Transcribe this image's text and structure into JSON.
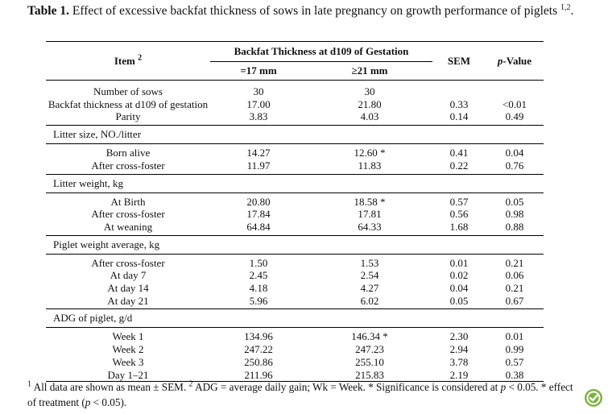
{
  "caption": {
    "label": "Table 1.",
    "text": "Effect of excessive backfat thickness of sows in late pregnancy on growth performance of piglets",
    "sup": "1,2",
    "end": "."
  },
  "header": {
    "item": "Item",
    "item_sup": "2",
    "group": "Backfat Thickness at d109 of Gestation",
    "col1": "=17 mm",
    "col2": "≥21 mm",
    "sem": "SEM",
    "pvalue_italic": "p",
    "pvalue_rest": "-Value"
  },
  "sections": [
    {
      "title": "",
      "rows": [
        {
          "item": "Number of sows",
          "a": "30",
          "b": "30",
          "sem": "",
          "p": ""
        },
        {
          "item": "Backfat thickness at d109 of gestation",
          "a": "17.00",
          "b": "21.80",
          "sem": "0.33",
          "p": "<0.01"
        },
        {
          "item": "Parity",
          "a": "3.83",
          "b": "4.03",
          "sem": "0.14",
          "p": "0.49"
        }
      ]
    },
    {
      "title": "Litter size, NO./litter",
      "rows": [
        {
          "item": "Born alive",
          "a": "14.27",
          "b": "12.60 *",
          "sem": "0.41",
          "p": "0.04"
        },
        {
          "item": "After cross-foster",
          "a": "11.97",
          "b": "11.83",
          "sem": "0.22",
          "p": "0.76"
        }
      ]
    },
    {
      "title": "Litter weight, kg",
      "rows": [
        {
          "item": "At Birth",
          "a": "20.80",
          "b": "18.58 *",
          "sem": "0.57",
          "p": "0.05"
        },
        {
          "item": "After cross-foster",
          "a": "17.84",
          "b": "17.81",
          "sem": "0.56",
          "p": "0.98"
        },
        {
          "item": "At weaning",
          "a": "64.84",
          "b": "64.33",
          "sem": "1.68",
          "p": "0.88"
        }
      ]
    },
    {
      "title": "Piglet weight average, kg",
      "rows": [
        {
          "item": "After cross-foster",
          "a": "1.50",
          "b": "1.53",
          "sem": "0.01",
          "p": "0.21"
        },
        {
          "item": "At day 7",
          "a": "2.45",
          "b": "2.54",
          "sem": "0.02",
          "p": "0.06"
        },
        {
          "item": "At day 14",
          "a": "4.18",
          "b": "4.27",
          "sem": "0.04",
          "p": "0.21"
        },
        {
          "item": "At day 21",
          "a": "5.96",
          "b": "6.02",
          "sem": "0.05",
          "p": "0.67"
        }
      ]
    },
    {
      "title": "ADG of piglet, g/d",
      "rows": [
        {
          "item": "Week 1",
          "a": "134.96",
          "b": "146.34 *",
          "sem": "2.30",
          "p": "0.01"
        },
        {
          "item": "Week 2",
          "a": "247.22",
          "b": "247.23",
          "sem": "2.94",
          "p": "0.99"
        },
        {
          "item": "Week 3",
          "a": "250.86",
          "b": "255.10",
          "sem": "3.78",
          "p": "0.57"
        },
        {
          "item": "Day 1–21",
          "a": "211.96",
          "b": "215.83",
          "sem": "2.19",
          "p": "0.38"
        }
      ]
    }
  ],
  "footnote": {
    "n1": "1",
    "t1": " All data are shown as mean ± SEM. ",
    "n2": "2",
    "t2": " ADG = average daily gain; Wk = Week. * Significance is considered at ",
    "p1": "p",
    "t3": " < 0.05. * effect of treatment (",
    "p2": "p",
    "t4": " < 0.05)."
  },
  "logo_icon": "mdpi-check-logo",
  "logo_color": "#7cb342"
}
